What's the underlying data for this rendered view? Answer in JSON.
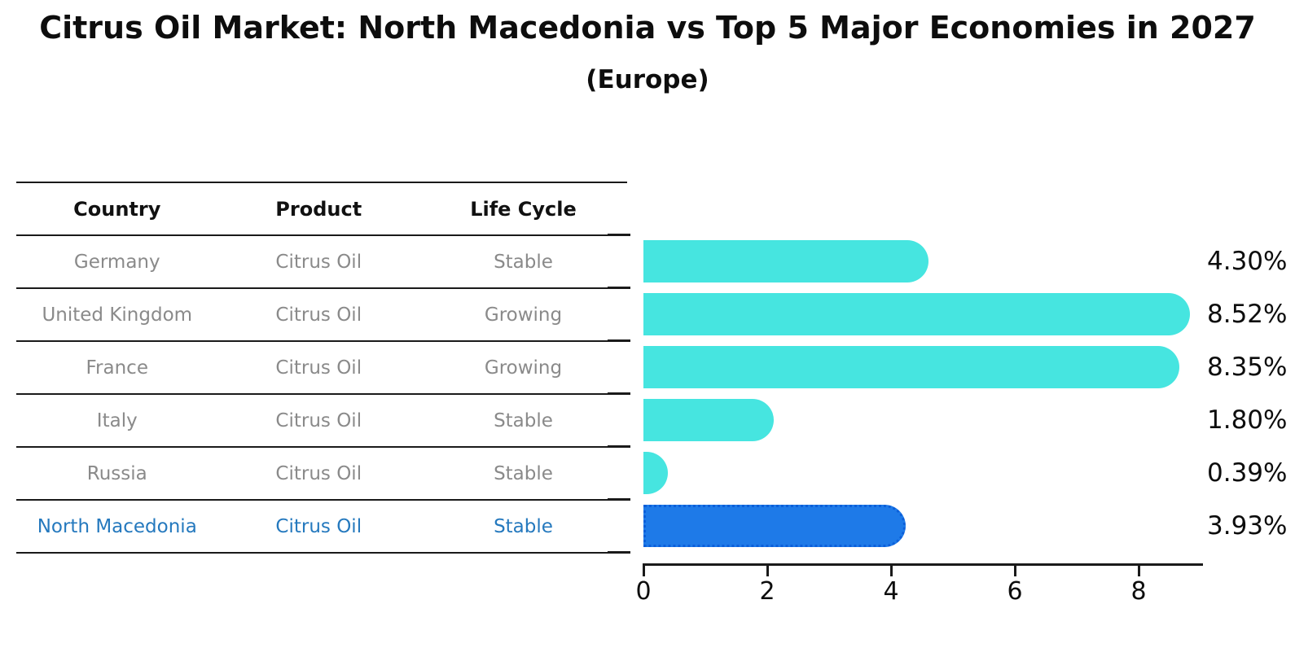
{
  "title": "Citrus Oil Market: North Macedonia vs Top 5 Major Economies in 2027",
  "subtitle": "(Europe)",
  "table": {
    "columns": [
      "Country",
      "Product",
      "Life Cycle"
    ],
    "rows": [
      {
        "country": "Germany",
        "product": "Citrus Oil",
        "life_cycle": "Stable",
        "highlight": false
      },
      {
        "country": "United Kingdom",
        "product": "Citrus Oil",
        "life_cycle": "Growing",
        "highlight": false
      },
      {
        "country": "France",
        "product": "Citrus Oil",
        "life_cycle": "Growing",
        "highlight": false
      },
      {
        "country": "Italy",
        "product": "Citrus Oil",
        "life_cycle": "Stable",
        "highlight": false
      },
      {
        "country": "Russia",
        "product": "Citrus Oil",
        "life_cycle": "Stable",
        "highlight": false
      },
      {
        "country": "North Macedonia",
        "product": "Citrus Oil",
        "life_cycle": "Stable",
        "highlight": true
      }
    ]
  },
  "chart_data": {
    "type": "bar",
    "orientation": "horizontal",
    "title": "Citrus Oil Market: North Macedonia vs Top 5 Major Economies in 2027",
    "subtitle": "(Europe)",
    "categories": [
      "Germany",
      "United Kingdom",
      "France",
      "Italy",
      "Russia",
      "North Macedonia"
    ],
    "values": [
      4.3,
      8.52,
      8.35,
      1.8,
      0.39,
      3.93
    ],
    "value_labels": [
      "4.30%",
      "8.52%",
      "8.35%",
      "1.80%",
      "0.39%",
      "3.93%"
    ],
    "unit": "percent CAGR",
    "xlim": [
      0,
      9
    ],
    "xticks": [
      0,
      2,
      4,
      6,
      8
    ],
    "grid": false,
    "legend": false,
    "highlight_index": 5,
    "bar_color": "#46E5E0",
    "highlight_bar_color": "#1E7AE8",
    "highlight_border_color": "#0C5FD9",
    "row_text_color": "#8a8a8a",
    "highlight_text_color": "#2579be"
  }
}
